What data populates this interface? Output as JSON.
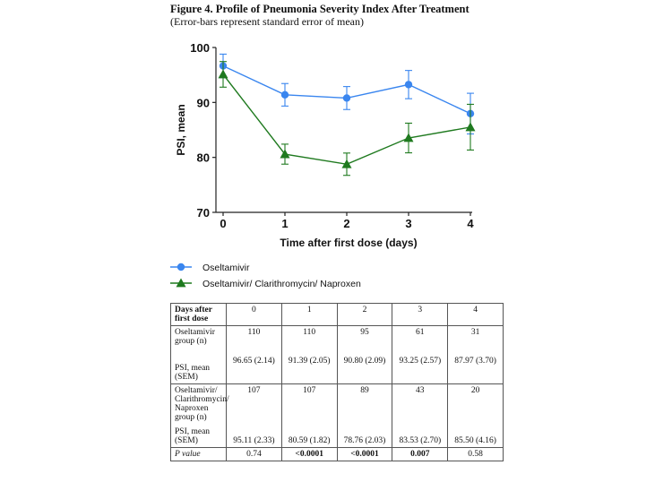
{
  "figure": {
    "title": "Figure 4. Profile of Pneumonia Severity Index After Treatment",
    "subtitle": "(Error-bars represent standard error of mean)"
  },
  "chart_data": {
    "type": "line",
    "xlabel": "Time after first dose (days)",
    "ylabel": "PSI, mean",
    "x": [
      0,
      1,
      2,
      3,
      4
    ],
    "xlim": [
      0,
      4
    ],
    "ylim": [
      70,
      100
    ],
    "yticks": [
      70,
      80,
      90,
      100
    ],
    "grid": false,
    "error_bars": "SEM",
    "legend_position": "bottom-left",
    "series": [
      {
        "name": "Oseltamivir",
        "color": "#3a86ef",
        "marker": "circle",
        "values": [
          96.65,
          91.39,
          90.8,
          93.25,
          87.97
        ],
        "errors": [
          2.14,
          2.05,
          2.09,
          2.57,
          3.7
        ]
      },
      {
        "name": "Oseltamivir/ Clarithromycin/ Naproxen",
        "color": "#1f7a1f",
        "marker": "triangle",
        "values": [
          95.11,
          80.59,
          78.76,
          83.53,
          85.5
        ],
        "errors": [
          2.33,
          1.82,
          2.03,
          2.7,
          4.16
        ]
      }
    ]
  },
  "table": {
    "header": {
      "label": "Days after first dose",
      "days": [
        "0",
        "1",
        "2",
        "3",
        "4"
      ]
    },
    "groupA": {
      "n_label": "Oseltamivir group (n)",
      "n": [
        "110",
        "110",
        "95",
        "61",
        "31"
      ],
      "psi_label": "PSI, mean (SEM)",
      "psi": [
        "96.65 (2.14)",
        "91.39 (2.05)",
        "90.80 (2.09)",
        "93.25 (2.57)",
        "87.97 (3.70)"
      ]
    },
    "groupB": {
      "n_label": "Oseltamivir/ Clarithromycin/ Naproxen group (n)",
      "n": [
        "107",
        "107",
        "89",
        "43",
        "20"
      ],
      "psi_label": "PSI, mean (SEM)",
      "psi": [
        "95.11 (2.33)",
        "80.59 (1.82)",
        "78.76 (2.03)",
        "83.53 (2.70)",
        "85.50 (4.16)"
      ]
    },
    "pvalue": {
      "label": "P value",
      "values": [
        "0.74",
        "<0.0001",
        "<0.0001",
        "0.007",
        "0.58"
      ]
    }
  }
}
